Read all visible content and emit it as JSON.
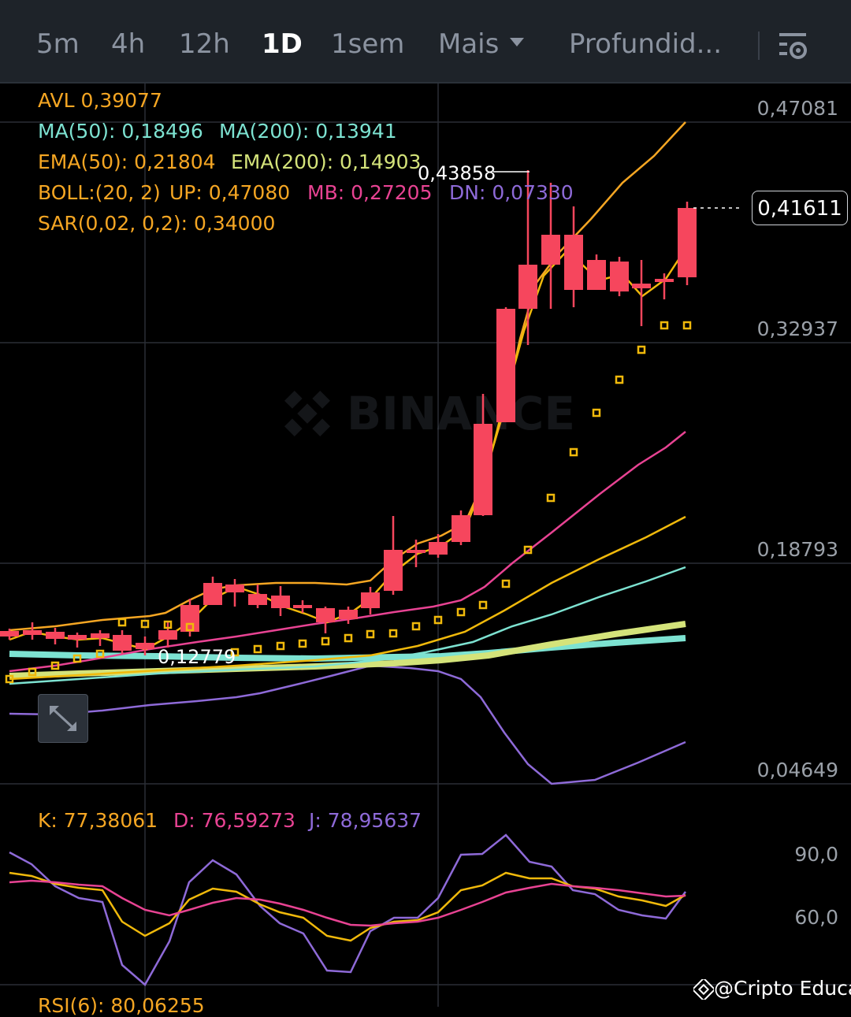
{
  "tabs": [
    {
      "label": "5m",
      "active": false
    },
    {
      "label": "4h",
      "active": false
    },
    {
      "label": "12h",
      "active": false
    },
    {
      "label": "1D",
      "active": true
    },
    {
      "label": "1sem",
      "active": false
    },
    {
      "label": "Mais",
      "active": false
    },
    {
      "label": "Profundid...",
      "active": false
    }
  ],
  "indicators": {
    "avl": "AVL 0,39077",
    "ma50": "MA(50): 0,18496",
    "ma200": "MA(200): 0,13941",
    "ema50": "EMA(50): 0,21804",
    "ema200": "EMA(200): 0,14903",
    "boll": "BOLL:(20, 2)",
    "boll_up": "UP: 0,47080",
    "boll_mb": "MB: 0,27205",
    "boll_dn": "DN: 0,07330",
    "sar": "SAR(0,02, 0,2): 0,34000"
  },
  "price_axis": [
    "0,47081",
    "0,32937",
    "0,18793",
    "0,04649"
  ],
  "current_price": "0,41611",
  "high_marker": "0,43858",
  "low_marker": "0,12779",
  "watermark_brand": "BINANCE",
  "kdj": {
    "k": "K: 77,38061",
    "d": "D: 76,59273",
    "j": "J: 78,95637",
    "axis": [
      "90,0",
      "60,0"
    ]
  },
  "rsi_partial": "RSI(6): 80,06255",
  "credit": "@Cripto Educa",
  "icons": [
    "chart-settings-icon",
    "expand-icon",
    "binance-logo-icon"
  ],
  "colors": {
    "up": "#2ebd85",
    "down": "#f6465d",
    "yellow": "#f0b90b",
    "orange": "#f5a623",
    "teal": "#7de2d1",
    "pink": "#e84393",
    "purple": "#8e6ad8",
    "lime": "#d4e37a",
    "tabbar_bg": "#1e2329"
  }
}
